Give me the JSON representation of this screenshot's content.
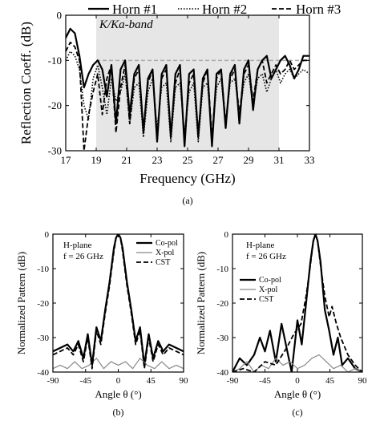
{
  "chart_data": [
    {
      "type": "line",
      "panel_label": "(a)",
      "xlabel": "Frequency (GHz)",
      "ylabel": "Reflection Coeff. (dB)",
      "xlim": [
        17,
        33
      ],
      "ylim": [
        -30,
        0
      ],
      "xticks": [
        "17",
        "19",
        "21",
        "23",
        "25",
        "27",
        "29",
        "31",
        "33"
      ],
      "yticks": [
        "0",
        "-10",
        "-20",
        "-30"
      ],
      "band_label": "K/Ka-band",
      "band_range": [
        19,
        31
      ],
      "threshold_db": -10,
      "legend_position": "top",
      "series": [
        {
          "name": "Horn #1",
          "style": "solid",
          "x": [
            17,
            17.3,
            17.6,
            17.9,
            18.2,
            18.5,
            18.8,
            19.1,
            19.4,
            19.7,
            20.0,
            20.3,
            20.6,
            20.9,
            21.2,
            21.5,
            21.8,
            22.1,
            22.4,
            22.7,
            23.0,
            23.3,
            23.6,
            23.9,
            24.2,
            24.5,
            24.8,
            25.1,
            25.4,
            25.7,
            26.0,
            26.3,
            26.6,
            26.9,
            27.2,
            27.5,
            27.8,
            28.1,
            28.4,
            28.7,
            29.0,
            29.3,
            29.6,
            29.9,
            30.2,
            30.5,
            30.8,
            31.1,
            31.4,
            31.7,
            32.0,
            32.3,
            32.6,
            33
          ],
          "y": [
            -5,
            -3,
            -4,
            -9,
            -16,
            -13,
            -11,
            -10,
            -12,
            -18,
            -11,
            -24,
            -12,
            -10,
            -22,
            -13,
            -11,
            -26,
            -14,
            -12,
            -28,
            -13,
            -11,
            -27,
            -13,
            -11,
            -29,
            -13,
            -12,
            -27,
            -14,
            -12,
            -29,
            -13,
            -12,
            -25,
            -13,
            -11,
            -24,
            -12,
            -10,
            -21,
            -12,
            -10,
            -9,
            -14,
            -12,
            -10,
            -9,
            -11,
            -14,
            -12,
            -9,
            -9
          ]
        },
        {
          "name": "Horn #2",
          "style": "dotted",
          "x": [
            17,
            17.3,
            17.6,
            17.9,
            18.2,
            18.5,
            18.8,
            19.1,
            19.4,
            19.7,
            20.0,
            20.3,
            20.6,
            20.9,
            21.2,
            21.5,
            21.8,
            22.1,
            22.4,
            22.7,
            23.0,
            23.3,
            23.6,
            23.9,
            24.2,
            24.5,
            24.8,
            25.1,
            25.4,
            25.7,
            26.0,
            26.3,
            26.6,
            26.9,
            27.2,
            27.5,
            27.8,
            28.1,
            28.4,
            28.7,
            29.0,
            29.3,
            29.6,
            29.9,
            30.2,
            30.5,
            30.8,
            31.1,
            31.4,
            31.7,
            32.0,
            32.3,
            32.6,
            33
          ],
          "y": [
            -10,
            -8,
            -9,
            -12,
            -20,
            -23,
            -14,
            -11,
            -16,
            -22,
            -14,
            -19,
            -17,
            -13,
            -24,
            -16,
            -15,
            -27,
            -17,
            -14,
            -25,
            -16,
            -15,
            -28,
            -16,
            -15,
            -26,
            -17,
            -15,
            -28,
            -16,
            -15,
            -27,
            -16,
            -14,
            -24,
            -15,
            -14,
            -22,
            -15,
            -13,
            -20,
            -14,
            -13,
            -17,
            -14,
            -12,
            -15,
            -13,
            -12,
            -14,
            -13,
            -12,
            -13
          ]
        },
        {
          "name": "Horn #3",
          "style": "dashed",
          "x": [
            17,
            17.3,
            17.6,
            17.9,
            18.2,
            18.5,
            18.8,
            19.1,
            19.4,
            19.7,
            20.0,
            20.3,
            20.6,
            20.9,
            21.2,
            21.5,
            21.8,
            22.1,
            22.4,
            22.7,
            23.0,
            23.3,
            23.6,
            23.9,
            24.2,
            24.5,
            24.8,
            25.1,
            25.4,
            25.7,
            26.0,
            26.3,
            26.6,
            26.9,
            27.2,
            27.5,
            27.8,
            28.1,
            28.4,
            28.7,
            29.0,
            29.3,
            29.6,
            29.9,
            30.2,
            30.5,
            30.8,
            31.1,
            31.4,
            31.7,
            32.0,
            32.3,
            32.6,
            33
          ],
          "y": [
            -8,
            -6,
            -7,
            -10,
            -30,
            -22,
            -17,
            -13,
            -22,
            -14,
            -11,
            -26,
            -16,
            -11,
            -24,
            -14,
            -12,
            -25,
            -15,
            -12,
            -27,
            -14,
            -12,
            -26,
            -15,
            -12,
            -28,
            -15,
            -13,
            -26,
            -15,
            -12,
            -27,
            -14,
            -12,
            -24,
            -14,
            -12,
            -22,
            -13,
            -11,
            -19,
            -12,
            -10,
            -15,
            -13,
            -11,
            -13,
            -12,
            -10,
            -12,
            -11,
            -10,
            -10
          ]
        }
      ]
    },
    {
      "type": "line",
      "panel_label": "(b)",
      "plane_label": "H-plane",
      "freq_label": "f = 26 GHz",
      "xlabel": "Angle θ (°)",
      "ylabel": "Normalized Pattern (dB)",
      "xlim": [
        -90,
        90
      ],
      "ylim": [
        -40,
        0
      ],
      "xticks": [
        "-90",
        "-45",
        "0",
        "45",
        "90"
      ],
      "yticks": [
        "0",
        "-10",
        "-20",
        "-30",
        "-40"
      ],
      "legend_position": "top-right",
      "series": [
        {
          "name": "Co-pol",
          "style": "solid",
          "x": [
            -90,
            -80,
            -70,
            -62,
            -55,
            -48,
            -42,
            -36,
            -30,
            -24,
            -18,
            -12,
            -6,
            -3,
            0,
            3,
            6,
            12,
            18,
            24,
            30,
            36,
            42,
            48,
            55,
            62,
            70,
            80,
            90
          ],
          "y": [
            -34,
            -33,
            -32,
            -34,
            -31,
            -36,
            -29,
            -38,
            -27,
            -31,
            -22,
            -14,
            -4,
            -1,
            0,
            -1,
            -4,
            -14,
            -22,
            -31,
            -27,
            -38,
            -29,
            -36,
            -31,
            -34,
            -32,
            -33,
            -34
          ]
        },
        {
          "name": "X-pol",
          "style": "solid-gray",
          "x": [
            -90,
            -80,
            -70,
            -60,
            -50,
            -40,
            -30,
            -20,
            -10,
            0,
            10,
            20,
            30,
            40,
            50,
            60,
            70,
            80,
            90
          ],
          "y": [
            -39,
            -38,
            -39,
            -37,
            -39,
            -38,
            -36,
            -39,
            -37,
            -38,
            -37,
            -39,
            -36,
            -38,
            -39,
            -37,
            -39,
            -38,
            -39
          ]
        },
        {
          "name": "CST",
          "style": "dashed",
          "x": [
            -90,
            -80,
            -70,
            -62,
            -55,
            -48,
            -42,
            -36,
            -30,
            -24,
            -18,
            -12,
            -6,
            -3,
            0,
            3,
            6,
            12,
            18,
            24,
            30,
            36,
            42,
            48,
            55,
            62,
            70,
            80,
            90
          ],
          "y": [
            -35,
            -34,
            -33,
            -35,
            -32,
            -37,
            -30,
            -39,
            -28,
            -32,
            -23,
            -15,
            -5,
            -1,
            0,
            -1,
            -5,
            -15,
            -23,
            -32,
            -28,
            -39,
            -30,
            -37,
            -32,
            -35,
            -33,
            -34,
            -35
          ]
        }
      ]
    },
    {
      "type": "line",
      "panel_label": "(c)",
      "plane_label": "H-plane",
      "freq_label": "f = 26 GHz",
      "xlabel": "Angle θ (°)",
      "ylabel": "Normalized Pattern (dB)",
      "xlim": [
        -90,
        90
      ],
      "ylim": [
        -40,
        0
      ],
      "xticks": [
        "-90",
        "-45",
        "0",
        "45",
        "90"
      ],
      "yticks": [
        "0",
        "-10",
        "-20",
        "-30",
        "-40"
      ],
      "legend_position": "top-left",
      "series": [
        {
          "name": "Co-pol",
          "style": "solid",
          "x": [
            -90,
            -80,
            -70,
            -60,
            -52,
            -45,
            -38,
            -30,
            -22,
            -15,
            -8,
            0,
            6,
            12,
            18,
            22,
            25,
            28,
            32,
            38,
            44,
            50,
            56,
            62,
            70,
            80,
            90
          ],
          "y": [
            -40,
            -36,
            -38,
            -35,
            -30,
            -34,
            -28,
            -37,
            -26,
            -33,
            -40,
            -25,
            -32,
            -20,
            -8,
            -2,
            0,
            -2,
            -8,
            -22,
            -28,
            -35,
            -30,
            -38,
            -36,
            -39,
            -40
          ]
        },
        {
          "name": "X-pol",
          "style": "solid-gray",
          "x": [
            -90,
            -80,
            -70,
            -60,
            -50,
            -40,
            -30,
            -20,
            -10,
            0,
            10,
            20,
            30,
            40,
            50,
            60,
            70,
            80,
            90
          ],
          "y": [
            -40,
            -39,
            -37,
            -40,
            -38,
            -39,
            -36,
            -38,
            -37,
            -39,
            -38,
            -36,
            -35,
            -37,
            -39,
            -38,
            -40,
            -39,
            -40
          ]
        },
        {
          "name": "CST",
          "style": "dashed",
          "x": [
            -90,
            -75,
            -60,
            -45,
            -30,
            -15,
            -5,
            5,
            12,
            18,
            22,
            25,
            28,
            32,
            38,
            44,
            48,
            54,
            60,
            70,
            80,
            90
          ],
          "y": [
            -40,
            -39,
            -40,
            -37,
            -38,
            -33,
            -29,
            -26,
            -18,
            -9,
            -2,
            0,
            -2,
            -9,
            -18,
            -24,
            -21,
            -26,
            -30,
            -35,
            -38,
            -40
          ]
        }
      ]
    }
  ]
}
